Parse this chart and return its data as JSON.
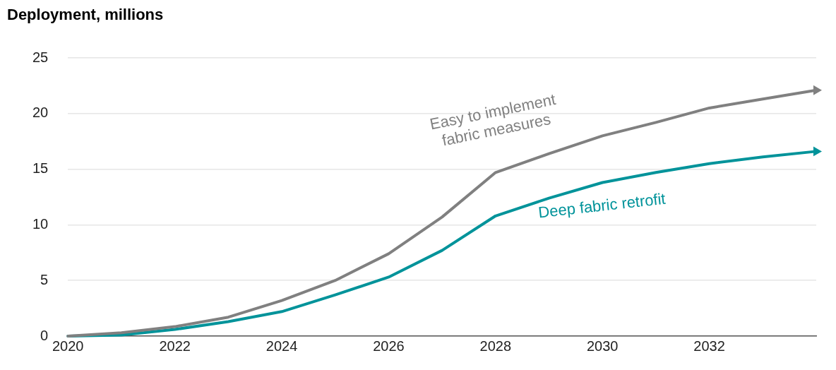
{
  "chart_data": {
    "type": "line",
    "ylabel": "Deployment, millions",
    "x": [
      2020,
      2021,
      2022,
      2023,
      2024,
      2025,
      2026,
      2027,
      2028,
      2029,
      2030,
      2031,
      2032,
      2033,
      2034
    ],
    "series": [
      {
        "name": "Easy to implement\nfabric measures",
        "color": "#808080",
        "values": [
          0,
          0.3,
          0.85,
          1.7,
          3.2,
          5.0,
          7.4,
          10.7,
          14.7,
          16.4,
          18.0,
          19.2,
          20.5,
          21.3,
          22.1
        ]
      },
      {
        "name": "Deep fabric retrofit",
        "color": "#00939a",
        "values": [
          0,
          0.1,
          0.6,
          1.3,
          2.2,
          3.7,
          5.3,
          7.7,
          10.8,
          12.4,
          13.8,
          14.7,
          15.5,
          16.1,
          16.6
        ]
      }
    ],
    "xlim": [
      2020,
      2034
    ],
    "xticks": [
      2020,
      2022,
      2024,
      2026,
      2028,
      2030,
      2032
    ],
    "ylim": [
      0,
      25
    ],
    "yticks": [
      0,
      5,
      10,
      15,
      20,
      25
    ],
    "grid": "y",
    "legend": false,
    "marker": "none",
    "line_style": "solid"
  }
}
